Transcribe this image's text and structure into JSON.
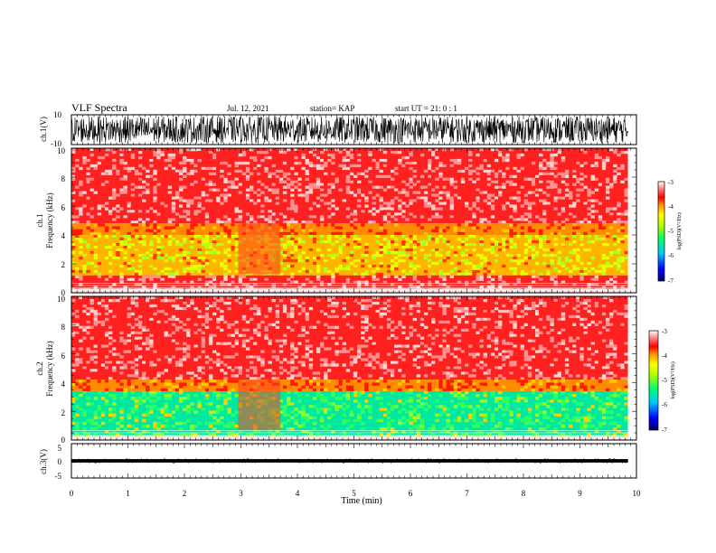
{
  "header": {
    "title": "VLF Spectra",
    "date": "Jul. 12, 2021",
    "station": "station= KAP",
    "start": "start UT = 21: 0 : 1"
  },
  "chart_data": {
    "type": "heatmap",
    "xlabel": "Time (min)",
    "x_ticks": [
      "0",
      "1",
      "2",
      "3",
      "4",
      "5",
      "6",
      "7",
      "8",
      "9",
      "10"
    ],
    "xlim": [
      0,
      10
    ],
    "data_end_min": 9.85,
    "panels": [
      {
        "id": "ch1-waveform",
        "type": "line",
        "ylabel": "ch.1(V)",
        "ylim": [
          -10,
          10
        ],
        "y_ticks": [
          "10",
          "-10"
        ],
        "amplitude_range": [
          -9,
          9
        ]
      },
      {
        "id": "ch1-spectrogram",
        "type": "heatmap",
        "ylabel_top": "ch.1",
        "ylabel": "Frequency (kHz)",
        "ylim": [
          0,
          10
        ],
        "y_ticks": [
          "0",
          "2",
          "4",
          "6",
          "8",
          "10"
        ],
        "bands": [
          {
            "from_khz": 4.8,
            "to_khz": 10,
            "level": "red"
          },
          {
            "from_khz": 4.0,
            "to_khz": 4.8,
            "level": "red-orange"
          },
          {
            "from_khz": 1.2,
            "to_khz": 4.0,
            "level": "yellow-green"
          },
          {
            "from_khz": 0.3,
            "to_khz": 1.2,
            "level": "red"
          }
        ],
        "quiet_interval_min": [
          2.95,
          3.7
        ],
        "colorbar": {
          "label": "log(PSD)(V²/Hz)",
          "range": [
            -7,
            -3
          ],
          "ticks": [
            "-3",
            "-4",
            "-5",
            "-6",
            "-7"
          ]
        }
      },
      {
        "id": "ch2-spectrogram",
        "type": "heatmap",
        "ylabel_top": "ch.2",
        "ylabel": "Frequency (kHz)",
        "ylim": [
          0,
          10
        ],
        "y_ticks": [
          "0",
          "2",
          "4",
          "6",
          "8",
          "10"
        ],
        "bands": [
          {
            "from_khz": 4.2,
            "to_khz": 10,
            "level": "red"
          },
          {
            "from_khz": 3.4,
            "to_khz": 4.2,
            "level": "red-orange"
          },
          {
            "from_khz": 0.3,
            "to_khz": 3.4,
            "level": "green"
          }
        ],
        "quiet_interval_min": [
          2.95,
          3.7
        ],
        "colorbar": {
          "label": "log(PSD)(V²/Hz)",
          "range": [
            -7,
            -3
          ],
          "ticks": [
            "-3",
            "-4",
            "-5",
            "-6",
            "-7"
          ]
        }
      },
      {
        "id": "ch3-waveform",
        "type": "line",
        "ylabel": "ch.3(V)",
        "ylim": [
          -5,
          5
        ],
        "y_ticks": [
          "5",
          "0",
          "-5"
        ],
        "baseline_v": 0,
        "amplitude_range": [
          -0.5,
          0.5
        ]
      }
    ],
    "colorscale": [
      "#000064",
      "#0000ff",
      "#00c8ff",
      "#00ff66",
      "#aaff00",
      "#ffff00",
      "#ff9900",
      "#ff0000",
      "#ff8888",
      "#ffffff"
    ]
  }
}
